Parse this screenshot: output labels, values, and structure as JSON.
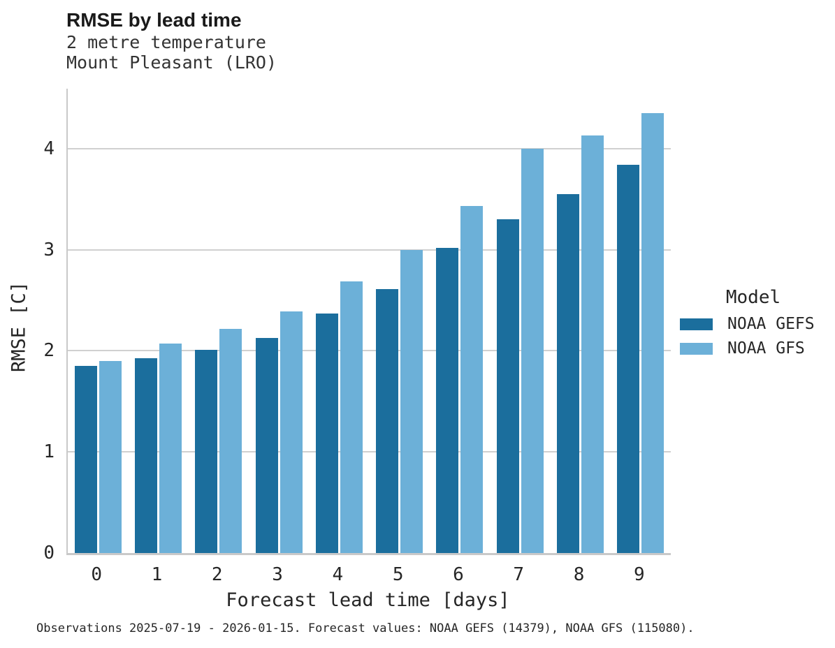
{
  "chart_data": {
    "type": "bar",
    "title": "RMSE by lead time",
    "subtitle": [
      "2 metre temperature",
      "Mount Pleasant (LRO)"
    ],
    "xlabel": "Forecast lead time [days]",
    "ylabel": "RMSE [C]",
    "categories": [
      "0",
      "1",
      "2",
      "3",
      "4",
      "5",
      "6",
      "7",
      "8",
      "9"
    ],
    "series": [
      {
        "name": "NOAA GEFS",
        "color": "#1b6e9d",
        "values": [
          1.85,
          1.93,
          2.01,
          2.13,
          2.37,
          2.61,
          3.02,
          3.3,
          3.55,
          3.84
        ]
      },
      {
        "name": "NOAA GFS",
        "color": "#6cb0d8",
        "values": [
          1.9,
          2.07,
          2.22,
          2.39,
          2.69,
          3.0,
          3.43,
          4.0,
          4.13,
          4.35
        ]
      }
    ],
    "yticks": [
      0,
      1,
      2,
      3,
      4
    ],
    "ylim": [
      0,
      4.593
    ],
    "grid": "horizontal-only",
    "legend": {
      "title": "Model",
      "position": "right"
    },
    "caption": "Observations 2025-07-19 - 2026-01-15. Forecast values: NOAA GEFS (14379), NOAA GFS (115080)."
  },
  "colors": {
    "gridline": "#d0d0d0",
    "spine": "#c9c9c9",
    "text": "#262626"
  }
}
